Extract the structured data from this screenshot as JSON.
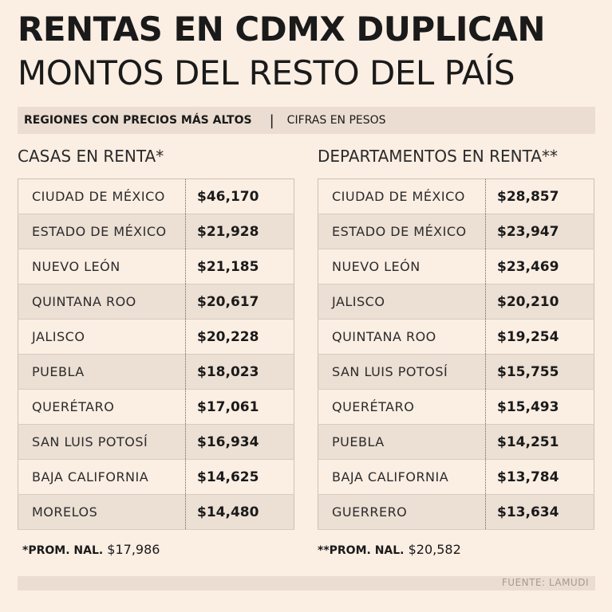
{
  "headline": {
    "line1": "RENTAS EN CDMX DUPLICAN",
    "line2": "MONTOS DEL RESTO DEL PAÍS"
  },
  "band": {
    "left": "REGIONES CON PRECIOS MÁS ALTOS",
    "separator": "|",
    "right": "CIFRAS EN PESOS"
  },
  "houses": {
    "title": "CASAS EN RENTA*",
    "rows": [
      {
        "state": "CIUDAD DE MÉXICO",
        "price": "$46,170"
      },
      {
        "state": "ESTADO DE MÉXICO",
        "price": "$21,928"
      },
      {
        "state": "NUEVO LEÓN",
        "price": "$21,185"
      },
      {
        "state": "QUINTANA ROO",
        "price": "$20,617"
      },
      {
        "state": "JALISCO",
        "price": "$20,228"
      },
      {
        "state": "PUEBLA",
        "price": "$18,023"
      },
      {
        "state": "QUERÉTARO",
        "price": "$17,061"
      },
      {
        "state": "SAN LUIS POTOSÍ",
        "price": "$16,934"
      },
      {
        "state": "BAJA CALIFORNIA",
        "price": "$14,625"
      },
      {
        "state": "MORELOS",
        "price": "$14,480"
      }
    ],
    "note_label": "*PROM. NAL.",
    "note_value": "$17,986"
  },
  "apartments": {
    "title": "DEPARTAMENTOS EN RENTA**",
    "rows": [
      {
        "state": "CIUDAD DE MÉXICO",
        "price": "$28,857"
      },
      {
        "state": "ESTADO DE MÉXICO",
        "price": "$23,947"
      },
      {
        "state": "NUEVO LEÓN",
        "price": "$23,469"
      },
      {
        "state": "JALISCO",
        "price": "$20,210"
      },
      {
        "state": "QUINTANA ROO",
        "price": "$19,254"
      },
      {
        "state": "SAN LUIS POTOSÍ",
        "price": "$15,755"
      },
      {
        "state": "QUERÉTARO",
        "price": "$15,493"
      },
      {
        "state": "PUEBLA",
        "price": "$14,251"
      },
      {
        "state": "BAJA CALIFORNIA",
        "price": "$13,784"
      },
      {
        "state": "GUERRERO",
        "price": "$13,634"
      }
    ],
    "note_label": "**PROM. NAL.",
    "note_value": "$20,582"
  },
  "footer": {
    "source": "FUENTE: LAMUDI"
  }
}
